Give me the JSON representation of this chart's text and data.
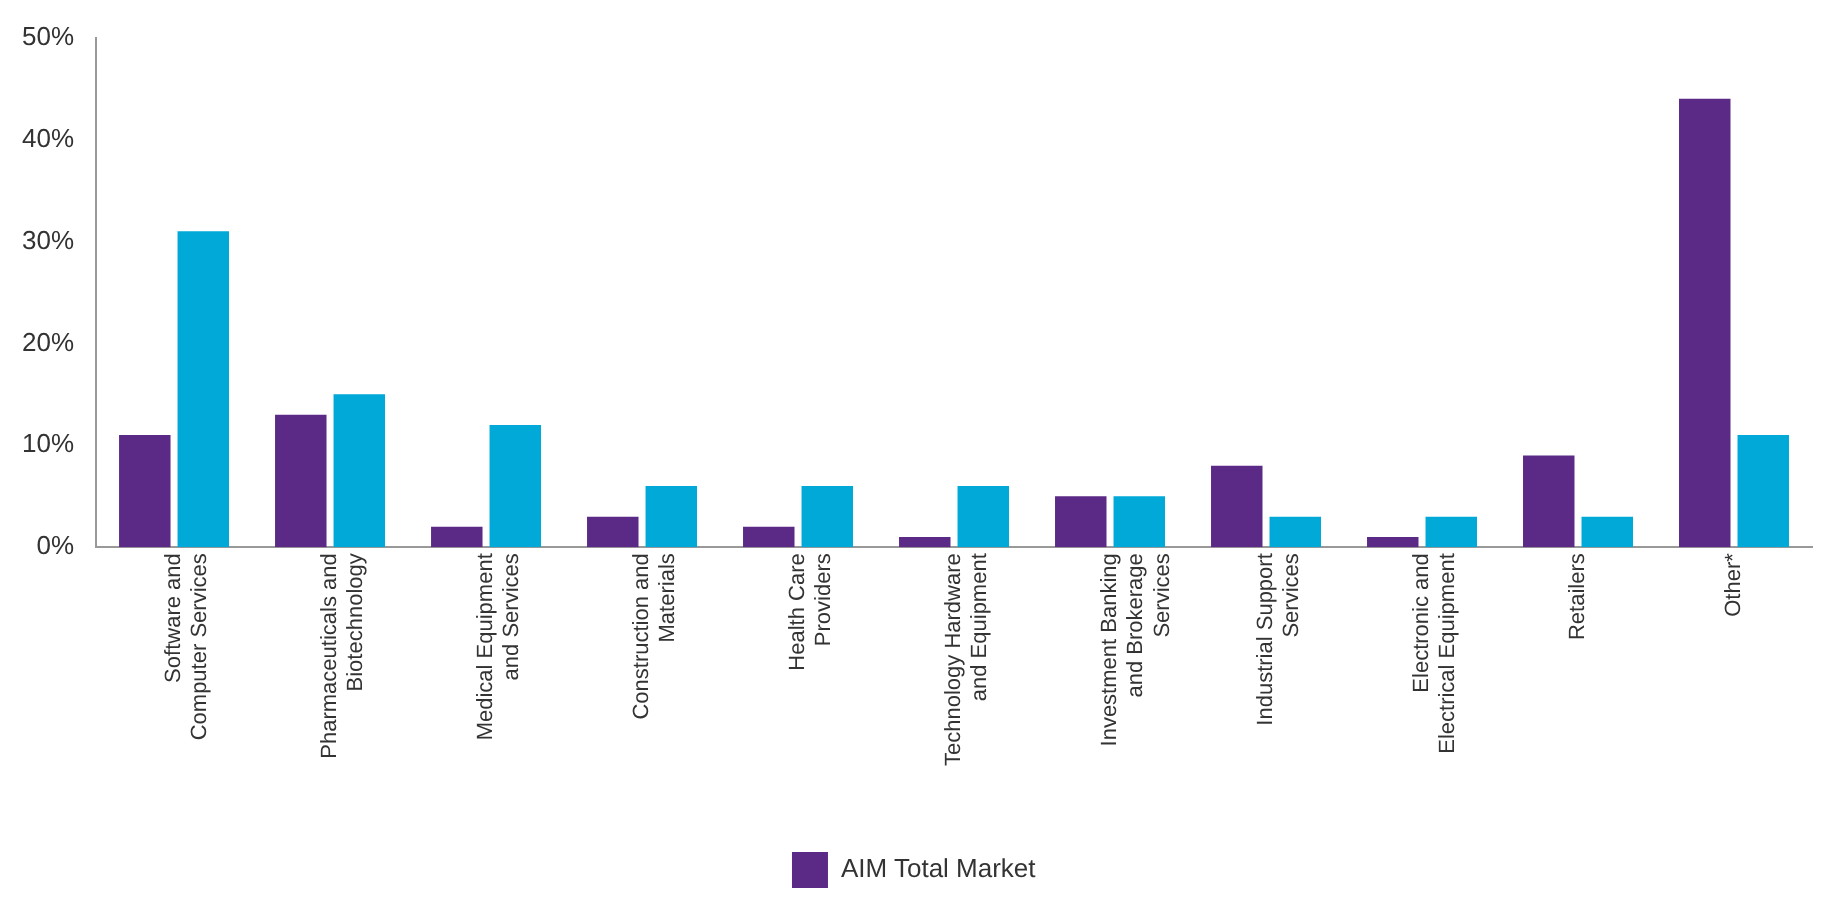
{
  "chart_data": {
    "type": "bar",
    "categories": [
      "Software and Computer Services",
      "Pharmaceuticals and Biotechnology",
      "Medical Equipment and Services",
      "Construction and Materials",
      "Health Care Providers",
      "Technology Hardware and Equipment",
      "Investment Banking and Brokerage Services",
      "Industrial Support Services",
      "Electronic and Electrical Equipment",
      "Retailers",
      "Other*"
    ],
    "series": [
      {
        "name": "AIM Total Market",
        "color": "#5b2a86",
        "values": [
          11,
          13,
          2,
          3,
          2,
          1,
          5,
          8,
          1,
          9,
          44
        ]
      },
      {
        "color": "#00a9d8",
        "values": [
          31,
          15,
          12,
          6,
          6,
          6,
          5,
          3,
          3,
          3,
          11
        ]
      }
    ],
    "ylim": [
      0,
      50
    ],
    "yticks": [
      {
        "value": 0,
        "label": "0%"
      },
      {
        "value": 10,
        "label": "10%"
      },
      {
        "value": 20,
        "label": "20%"
      },
      {
        "value": 30,
        "label": "30%"
      },
      {
        "value": 40,
        "label": "40%"
      },
      {
        "value": 50,
        "label": "50%"
      }
    ],
    "grid": false,
    "legend": "bottom"
  }
}
